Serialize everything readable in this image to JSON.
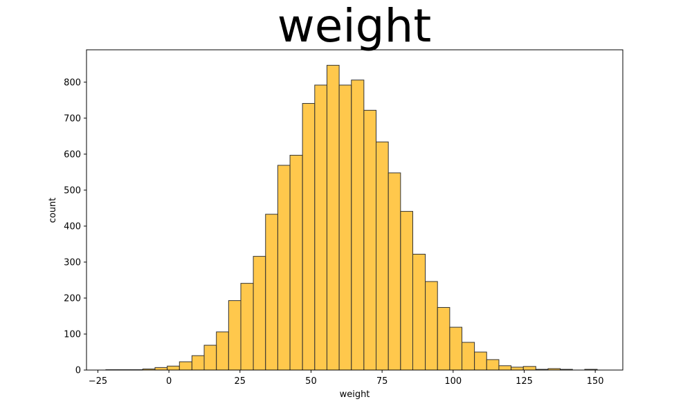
{
  "chart_data": {
    "type": "histogram",
    "title": "weight",
    "xlabel": "weight",
    "ylabel": "count",
    "xlim": [
      -29.0,
      159.7
    ],
    "ylim": [
      0,
      890
    ],
    "xticks": [
      -25,
      0,
      25,
      50,
      75,
      100,
      125,
      150
    ],
    "yticks": [
      0,
      100,
      200,
      300,
      400,
      500,
      600,
      700,
      800
    ],
    "bins": [
      {
        "x0": -22.2,
        "x1": -17.9,
        "count": 1
      },
      {
        "x0": -17.9,
        "x1": -13.5,
        "count": 1
      },
      {
        "x0": -13.5,
        "x1": -9.2,
        "count": 1
      },
      {
        "x0": -9.2,
        "x1": -4.9,
        "count": 3
      },
      {
        "x0": -4.9,
        "x1": -0.6,
        "count": 7
      },
      {
        "x0": -0.6,
        "x1": 3.7,
        "count": 11
      },
      {
        "x0": 3.7,
        "x1": 8.1,
        "count": 23
      },
      {
        "x0": 8.1,
        "x1": 12.4,
        "count": 40
      },
      {
        "x0": 12.4,
        "x1": 16.7,
        "count": 69
      },
      {
        "x0": 16.7,
        "x1": 21.0,
        "count": 106
      },
      {
        "x0": 21.0,
        "x1": 25.3,
        "count": 193
      },
      {
        "x0": 25.3,
        "x1": 29.7,
        "count": 241
      },
      {
        "x0": 29.7,
        "x1": 34.0,
        "count": 316
      },
      {
        "x0": 34.0,
        "x1": 38.3,
        "count": 433
      },
      {
        "x0": 38.3,
        "x1": 42.6,
        "count": 569
      },
      {
        "x0": 42.6,
        "x1": 47.0,
        "count": 597
      },
      {
        "x0": 47.0,
        "x1": 51.3,
        "count": 741
      },
      {
        "x0": 51.3,
        "x1": 55.6,
        "count": 792
      },
      {
        "x0": 55.6,
        "x1": 59.9,
        "count": 847
      },
      {
        "x0": 59.9,
        "x1": 64.2,
        "count": 792
      },
      {
        "x0": 64.2,
        "x1": 68.6,
        "count": 806
      },
      {
        "x0": 68.6,
        "x1": 72.9,
        "count": 722
      },
      {
        "x0": 72.9,
        "x1": 77.2,
        "count": 634
      },
      {
        "x0": 77.2,
        "x1": 81.5,
        "count": 548
      },
      {
        "x0": 81.5,
        "x1": 85.8,
        "count": 441
      },
      {
        "x0": 85.8,
        "x1": 90.2,
        "count": 322
      },
      {
        "x0": 90.2,
        "x1": 94.5,
        "count": 246
      },
      {
        "x0": 94.5,
        "x1": 98.8,
        "count": 174
      },
      {
        "x0": 98.8,
        "x1": 103.1,
        "count": 119
      },
      {
        "x0": 103.1,
        "x1": 107.5,
        "count": 77
      },
      {
        "x0": 107.5,
        "x1": 111.8,
        "count": 50
      },
      {
        "x0": 111.8,
        "x1": 116.1,
        "count": 29
      },
      {
        "x0": 116.1,
        "x1": 120.4,
        "count": 12
      },
      {
        "x0": 120.4,
        "x1": 124.7,
        "count": 8
      },
      {
        "x0": 124.7,
        "x1": 129.1,
        "count": 10
      },
      {
        "x0": 129.1,
        "x1": 133.4,
        "count": 2
      },
      {
        "x0": 133.4,
        "x1": 137.7,
        "count": 4
      },
      {
        "x0": 137.7,
        "x1": 142.0,
        "count": 2
      },
      {
        "x0": 142.0,
        "x1": 146.3,
        "count": 0
      },
      {
        "x0": 146.3,
        "x1": 150.7,
        "count": 2
      }
    ],
    "bar_color": "#ffb000",
    "bar_edge_color": "#333333",
    "bar_alpha": 0.7,
    "grid": false,
    "legend": false
  }
}
